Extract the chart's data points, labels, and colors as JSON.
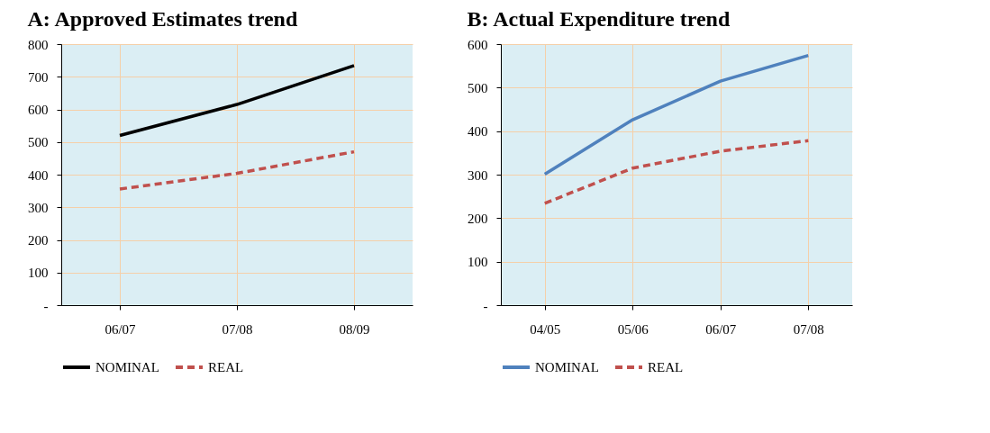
{
  "chart_data": [
    {
      "type": "line",
      "title": "A: Approved Estimates trend",
      "categories": [
        "06/07",
        "07/08",
        "08/09"
      ],
      "series": [
        {
          "name": "NOMINAL",
          "color": "#000000",
          "line_style": "solid",
          "values": [
            520,
            615,
            734
          ]
        },
        {
          "name": "REAL",
          "color": "#c0504d",
          "line_style": "dashed",
          "values": [
            356,
            404,
            470
          ]
        }
      ],
      "ylim": [
        0,
        800
      ],
      "yticks": [
        {
          "value": 0,
          "label": "-"
        },
        100,
        200,
        300,
        400,
        500,
        600,
        700,
        800
      ],
      "grid": true,
      "legend": "bottom"
    },
    {
      "type": "line",
      "title": "B: Actual Expenditure trend",
      "categories": [
        "04/05",
        "05/06",
        "06/07",
        "07/08"
      ],
      "series": [
        {
          "name": "NOMINAL",
          "color": "#4f81bd",
          "line_style": "solid",
          "values": [
            301,
            426,
            515,
            574
          ]
        },
        {
          "name": "REAL",
          "color": "#c0504d",
          "line_style": "dashed",
          "values": [
            234,
            315,
            354,
            378
          ]
        }
      ],
      "ylim": [
        0,
        600
      ],
      "yticks": [
        {
          "value": 0,
          "label": "-"
        },
        100,
        200,
        300,
        400,
        500,
        600
      ],
      "grid": true,
      "legend": "bottom"
    }
  ]
}
